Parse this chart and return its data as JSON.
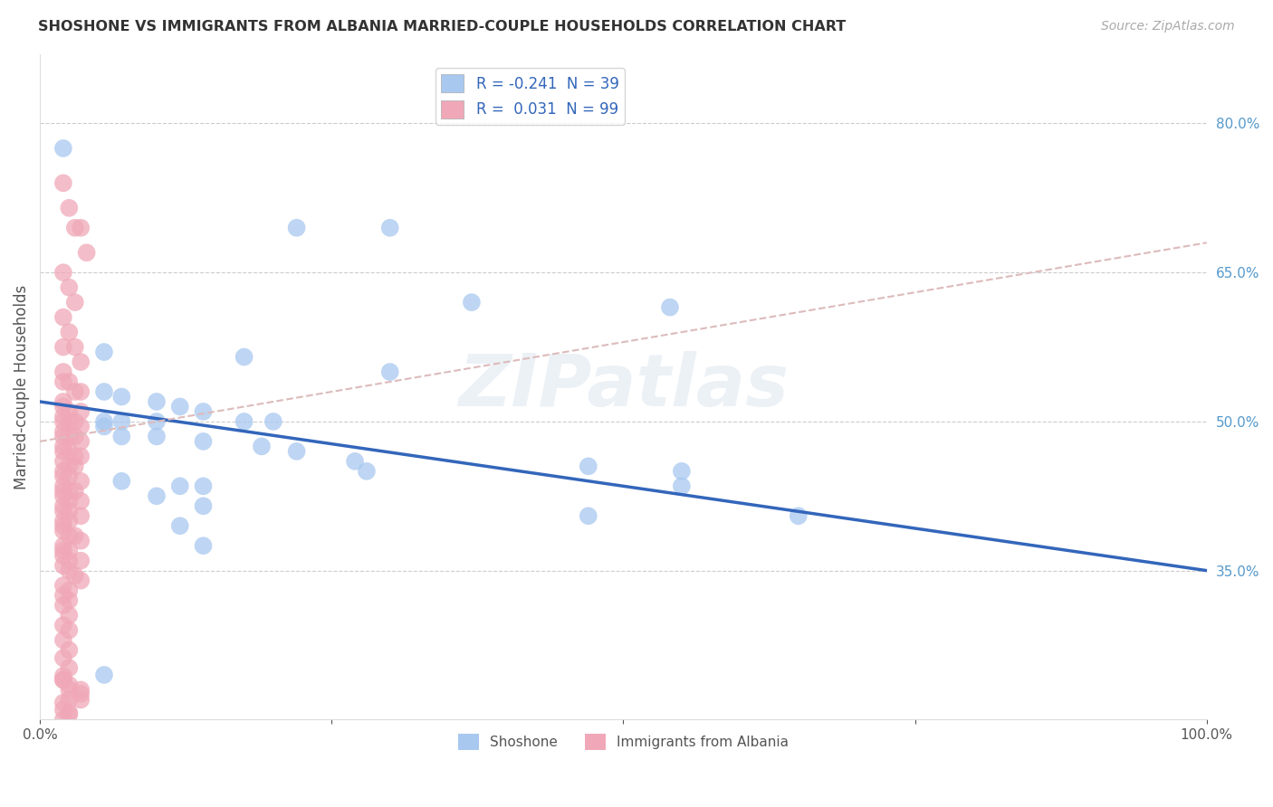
{
  "title": "SHOSHONE VS IMMIGRANTS FROM ALBANIA MARRIED-COUPLE HOUSEHOLDS CORRELATION CHART",
  "source_text": "Source: ZipAtlas.com",
  "ylabel": "Married-couple Households",
  "xlabel": "",
  "xlim": [
    0.0,
    1.0
  ],
  "ylim": [
    0.2,
    0.87
  ],
  "xtick_positions": [
    0.0,
    0.25,
    0.5,
    0.75,
    1.0
  ],
  "xtick_labels": [
    "0.0%",
    "",
    "",
    "",
    "100.0%"
  ],
  "ytick_vals": [
    0.35,
    0.5,
    0.65,
    0.8
  ],
  "ytick_labels": [
    "35.0%",
    "50.0%",
    "65.0%",
    "80.0%"
  ],
  "grid_color": "#cccccc",
  "shoshone_color": "#a8c8f0",
  "albania_color": "#f0a8b8",
  "shoshone_R": -0.241,
  "shoshone_N": 39,
  "albania_R": 0.031,
  "albania_N": 99,
  "trend_shoshone_color": "#3366bb",
  "trend_albania_color": "#ddbbbb",
  "watermark": "ZIPatlas",
  "shoshone_points": [
    [
      0.02,
      0.775
    ],
    [
      0.22,
      0.695
    ],
    [
      0.3,
      0.695
    ],
    [
      0.37,
      0.62
    ],
    [
      0.54,
      0.615
    ],
    [
      0.055,
      0.57
    ],
    [
      0.175,
      0.565
    ],
    [
      0.3,
      0.55
    ],
    [
      0.055,
      0.53
    ],
    [
      0.07,
      0.525
    ],
    [
      0.1,
      0.52
    ],
    [
      0.12,
      0.515
    ],
    [
      0.14,
      0.51
    ],
    [
      0.055,
      0.5
    ],
    [
      0.07,
      0.5
    ],
    [
      0.1,
      0.5
    ],
    [
      0.175,
      0.5
    ],
    [
      0.2,
      0.5
    ],
    [
      0.055,
      0.495
    ],
    [
      0.07,
      0.485
    ],
    [
      0.1,
      0.485
    ],
    [
      0.14,
      0.48
    ],
    [
      0.19,
      0.475
    ],
    [
      0.22,
      0.47
    ],
    [
      0.27,
      0.46
    ],
    [
      0.47,
      0.455
    ],
    [
      0.28,
      0.45
    ],
    [
      0.55,
      0.45
    ],
    [
      0.07,
      0.44
    ],
    [
      0.12,
      0.435
    ],
    [
      0.14,
      0.435
    ],
    [
      0.55,
      0.435
    ],
    [
      0.1,
      0.425
    ],
    [
      0.14,
      0.415
    ],
    [
      0.47,
      0.405
    ],
    [
      0.65,
      0.405
    ],
    [
      0.12,
      0.395
    ],
    [
      0.14,
      0.375
    ],
    [
      0.055,
      0.245
    ]
  ],
  "albania_points": [
    [
      0.02,
      0.74
    ],
    [
      0.025,
      0.715
    ],
    [
      0.03,
      0.695
    ],
    [
      0.035,
      0.695
    ],
    [
      0.04,
      0.67
    ],
    [
      0.02,
      0.65
    ],
    [
      0.025,
      0.635
    ],
    [
      0.03,
      0.62
    ],
    [
      0.02,
      0.605
    ],
    [
      0.025,
      0.59
    ],
    [
      0.02,
      0.575
    ],
    [
      0.03,
      0.575
    ],
    [
      0.035,
      0.56
    ],
    [
      0.02,
      0.55
    ],
    [
      0.02,
      0.54
    ],
    [
      0.025,
      0.54
    ],
    [
      0.03,
      0.53
    ],
    [
      0.035,
      0.53
    ],
    [
      0.02,
      0.52
    ],
    [
      0.02,
      0.515
    ],
    [
      0.025,
      0.51
    ],
    [
      0.035,
      0.51
    ],
    [
      0.02,
      0.505
    ],
    [
      0.02,
      0.5
    ],
    [
      0.025,
      0.5
    ],
    [
      0.03,
      0.5
    ],
    [
      0.035,
      0.495
    ],
    [
      0.02,
      0.49
    ],
    [
      0.02,
      0.485
    ],
    [
      0.025,
      0.485
    ],
    [
      0.03,
      0.485
    ],
    [
      0.035,
      0.48
    ],
    [
      0.02,
      0.475
    ],
    [
      0.02,
      0.47
    ],
    [
      0.025,
      0.47
    ],
    [
      0.03,
      0.465
    ],
    [
      0.035,
      0.465
    ],
    [
      0.02,
      0.46
    ],
    [
      0.025,
      0.455
    ],
    [
      0.03,
      0.455
    ],
    [
      0.02,
      0.45
    ],
    [
      0.02,
      0.445
    ],
    [
      0.025,
      0.445
    ],
    [
      0.035,
      0.44
    ],
    [
      0.02,
      0.435
    ],
    [
      0.02,
      0.43
    ],
    [
      0.025,
      0.43
    ],
    [
      0.03,
      0.43
    ],
    [
      0.02,
      0.425
    ],
    [
      0.025,
      0.42
    ],
    [
      0.035,
      0.42
    ],
    [
      0.02,
      0.415
    ],
    [
      0.02,
      0.41
    ],
    [
      0.025,
      0.41
    ],
    [
      0.035,
      0.405
    ],
    [
      0.02,
      0.4
    ],
    [
      0.025,
      0.4
    ],
    [
      0.02,
      0.395
    ],
    [
      0.02,
      0.39
    ],
    [
      0.025,
      0.385
    ],
    [
      0.03,
      0.385
    ],
    [
      0.035,
      0.38
    ],
    [
      0.02,
      0.375
    ],
    [
      0.02,
      0.37
    ],
    [
      0.025,
      0.37
    ],
    [
      0.02,
      0.365
    ],
    [
      0.025,
      0.36
    ],
    [
      0.035,
      0.36
    ],
    [
      0.02,
      0.355
    ],
    [
      0.025,
      0.35
    ],
    [
      0.03,
      0.345
    ],
    [
      0.035,
      0.34
    ],
    [
      0.02,
      0.335
    ],
    [
      0.025,
      0.33
    ],
    [
      0.02,
      0.325
    ],
    [
      0.025,
      0.32
    ],
    [
      0.02,
      0.315
    ],
    [
      0.025,
      0.305
    ],
    [
      0.02,
      0.295
    ],
    [
      0.025,
      0.29
    ],
    [
      0.02,
      0.28
    ],
    [
      0.025,
      0.27
    ],
    [
      0.02,
      0.262
    ],
    [
      0.025,
      0.252
    ],
    [
      0.02,
      0.244
    ],
    [
      0.025,
      0.235
    ],
    [
      0.035,
      0.226
    ],
    [
      0.02,
      0.217
    ],
    [
      0.025,
      0.207
    ],
    [
      0.02,
      0.24
    ],
    [
      0.025,
      0.23
    ],
    [
      0.035,
      0.22
    ],
    [
      0.02,
      0.21
    ],
    [
      0.025,
      0.205
    ],
    [
      0.02,
      0.2
    ],
    [
      0.025,
      0.22
    ],
    [
      0.035,
      0.23
    ],
    [
      0.02,
      0.24
    ]
  ]
}
